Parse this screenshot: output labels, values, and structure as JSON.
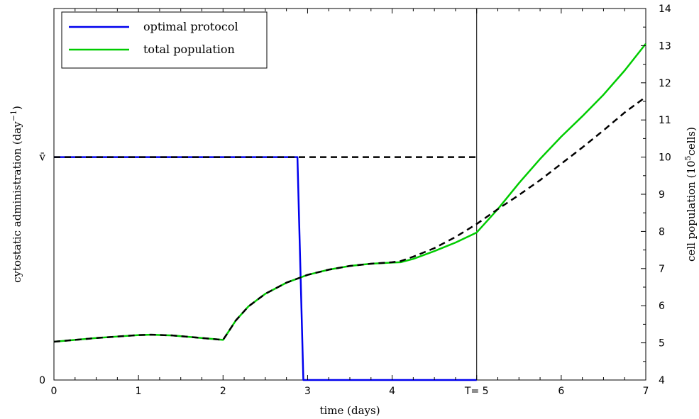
{
  "chart_data": {
    "type": "line",
    "xlabel": "time (days)",
    "ylabel_left": "cytostatic administration (day",
    "ylabel_left_sup": "−1",
    "ylabel_left_end": ")",
    "ylabel_right": "cell population (10",
    "ylabel_right_sup": "5",
    "ylabel_right_end": "cells)",
    "xlim": [
      0,
      7
    ],
    "ylim_right": [
      4,
      14
    ],
    "x_ticks": [
      "0",
      "1",
      "2",
      "3",
      "4",
      "T= 5",
      "6",
      "7"
    ],
    "x_tick_values": [
      0,
      1,
      2,
      3,
      4,
      5,
      6,
      7
    ],
    "y_right_ticks": [
      "4",
      "5",
      "6",
      "7",
      "8",
      "9",
      "10",
      "11",
      "12",
      "13",
      "14"
    ],
    "y_right_tick_values": [
      4,
      5,
      6,
      7,
      8,
      9,
      10,
      11,
      12,
      13,
      14
    ],
    "y_left_ticks": [
      "0",
      "v̄"
    ],
    "y_left_tick_values": [
      4,
      10
    ],
    "vline_x": 5,
    "legend": {
      "position": "top-left",
      "entries": [
        {
          "label": "optimal protocol",
          "color": "#0000ee"
        },
        {
          "label": "total population",
          "color": "#00cc00"
        }
      ]
    },
    "series": [
      {
        "name": "optimal protocol",
        "color": "#0000ee",
        "style": "solid",
        "x": [
          0,
          2.88,
          2.95,
          5
        ],
        "y": [
          10,
          10,
          4,
          4
        ]
      },
      {
        "name": "total population",
        "color": "#00cc00",
        "style": "solid",
        "x": [
          0,
          0.25,
          0.5,
          0.75,
          1.0,
          1.15,
          1.4,
          1.7,
          2.0,
          2.05,
          2.15,
          2.3,
          2.5,
          2.75,
          3.0,
          3.25,
          3.5,
          3.75,
          4.0,
          4.1,
          4.25,
          4.5,
          4.75,
          5.0,
          5.25,
          5.5,
          5.75,
          6.0,
          6.25,
          6.5,
          6.75,
          7.0
        ],
        "y": [
          5.03,
          5.08,
          5.13,
          5.17,
          5.21,
          5.22,
          5.2,
          5.14,
          5.08,
          5.25,
          5.6,
          5.98,
          6.32,
          6.62,
          6.83,
          6.97,
          7.07,
          7.13,
          7.16,
          7.17,
          7.26,
          7.47,
          7.7,
          7.97,
          8.6,
          9.3,
          9.95,
          10.55,
          11.1,
          11.68,
          12.33,
          13.05
        ]
      },
      {
        "name": "",
        "color": "#000000",
        "style": "dashed",
        "x": [
          0,
          0.25,
          0.5,
          0.75,
          1.0,
          1.15,
          1.4,
          1.7,
          2.0,
          2.05,
          2.15,
          2.3,
          2.5,
          2.75,
          3.0,
          3.25,
          3.5,
          3.75,
          4.0,
          4.1,
          4.25,
          4.5,
          4.75,
          5.0,
          5.25,
          5.5,
          5.75,
          6.0,
          6.25,
          6.5,
          6.75,
          7.0
        ],
        "y": [
          5.03,
          5.08,
          5.13,
          5.17,
          5.21,
          5.22,
          5.2,
          5.14,
          5.08,
          5.25,
          5.6,
          5.98,
          6.32,
          6.62,
          6.83,
          6.97,
          7.07,
          7.13,
          7.17,
          7.2,
          7.32,
          7.55,
          7.85,
          8.2,
          8.6,
          8.98,
          9.38,
          9.82,
          10.26,
          10.72,
          11.2,
          11.62
        ]
      },
      {
        "name": "",
        "color": "#000000",
        "style": "dashed",
        "x": [
          0,
          5
        ],
        "y": [
          10,
          10
        ]
      }
    ]
  }
}
